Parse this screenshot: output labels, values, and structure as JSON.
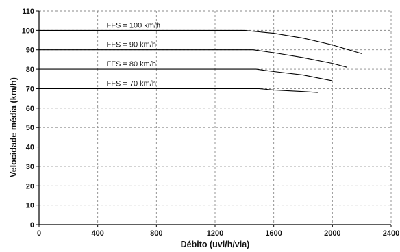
{
  "chart_data": {
    "type": "line",
    "title": "",
    "xlabel": "Débito (uvl/h/via)",
    "ylabel": "Velocidade média (km/h)",
    "xlim": [
      0,
      2400
    ],
    "ylim": [
      0,
      110
    ],
    "x_ticks": [
      0,
      400,
      800,
      1200,
      1600,
      2000,
      2400
    ],
    "y_ticks": [
      0,
      10,
      20,
      30,
      40,
      50,
      60,
      70,
      80,
      90,
      100,
      110
    ],
    "grid": true,
    "series": [
      {
        "name": "FFS = 100 km/h",
        "x": [
          0,
          1400,
          1600,
          1800,
          2000,
          2200
        ],
        "y": [
          100,
          100,
          98.5,
          96,
          92.5,
          88
        ]
      },
      {
        "name": "FFS = 90 km/h",
        "x": [
          0,
          1460,
          1600,
          1800,
          2000,
          2100
        ],
        "y": [
          90,
          90,
          88.5,
          86,
          83,
          81
        ]
      },
      {
        "name": "FFS = 80 km/h",
        "x": [
          0,
          1480,
          1600,
          1800,
          2000
        ],
        "y": [
          80,
          80,
          78.8,
          77,
          74
        ]
      },
      {
        "name": "FFS = 70 km/h",
        "x": [
          0,
          1500,
          1600,
          1800,
          1900
        ],
        "y": [
          70,
          70,
          69.3,
          68.5,
          68
        ]
      }
    ],
    "colors": {
      "line": "#000000",
      "grid": "#8a8a8a",
      "text": "#111111"
    }
  }
}
